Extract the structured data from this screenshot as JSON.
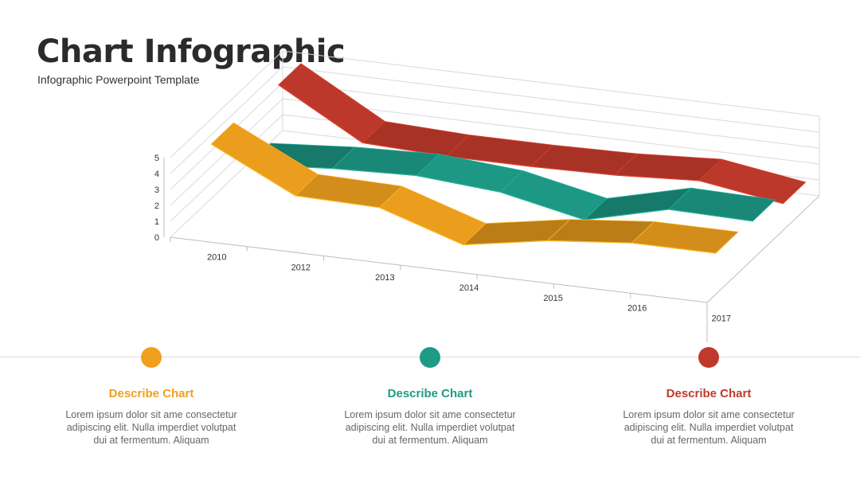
{
  "header": {
    "title": "Chart Infographic",
    "subtitle": "Infographic Powerpoint Template"
  },
  "colors": {
    "orange": "#F0A01E",
    "teal": "#1E9B87",
    "red": "#C0392B"
  },
  "chart_data": {
    "type": "line",
    "style": "3d-ribbon",
    "title": "",
    "xlabel": "",
    "ylabel": "",
    "categories": [
      "2010",
      "2012",
      "2013",
      "2014",
      "2015",
      "2016",
      "2017"
    ],
    "yticks": [
      "0",
      "1",
      "2",
      "3",
      "4",
      "5"
    ],
    "ylim": [
      0,
      5
    ],
    "grid": true,
    "series": [
      {
        "color": "#C0392B",
        "values": [
          4.2,
          1.2,
          1.0,
          1.0,
          1.1,
          1.4,
          0.6
        ]
      },
      {
        "color": "#1E9B87",
        "values": [
          1.0,
          1.4,
          1.6,
          1.2,
          0.1,
          1.4,
          1.3
        ]
      },
      {
        "color": "#F0A01E",
        "values": [
          4.5,
          1.9,
          1.8,
          0.1,
          1.0,
          1.5,
          1.5
        ]
      }
    ]
  },
  "cards": [
    {
      "title": "Describe Chart",
      "text": "Lorem ipsum dolor sit ame consectetur adipiscing elit. Nulla imperdiet volutpat dui at fermentum. Aliquam",
      "color": "#F0A01E"
    },
    {
      "title": "Describe Chart",
      "text": "Lorem ipsum dolor sit ame consectetur adipiscing elit. Nulla imperdiet volutpat dui at fermentum. Aliquam",
      "color": "#1E9B87"
    },
    {
      "title": "Describe Chart",
      "text": "Lorem ipsum dolor sit ame consectetur adipiscing elit. Nulla imperdiet volutpat dui at fermentum. Aliquam",
      "color": "#C0392B"
    }
  ]
}
